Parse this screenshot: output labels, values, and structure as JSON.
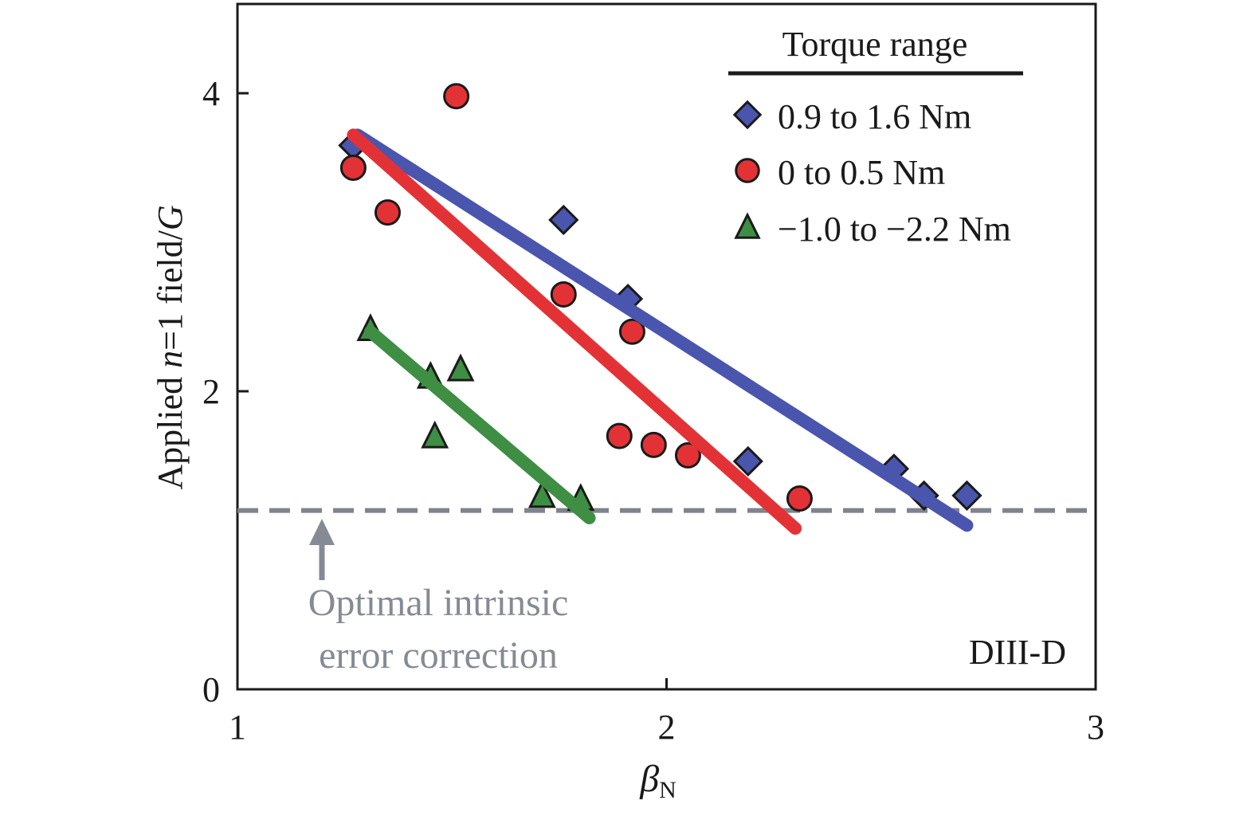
{
  "colors": {
    "blue": "#4a55ad",
    "red": "#e33236",
    "green": "#3e8e44",
    "dashed_line": "#7f848c",
    "note": "#858a94"
  },
  "chart_data": {
    "type": "scatter",
    "xlabel_symbol": "β",
    "xlabel_sub": "N",
    "ylabel_parts": [
      "Applied ",
      "n",
      "=1 field/",
      "G"
    ],
    "xlim": [
      1,
      3
    ],
    "ylim": [
      0,
      4.6
    ],
    "x_ticks": [
      1,
      2,
      3
    ],
    "x_tick_labels": [
      "1",
      "2",
      "3"
    ],
    "y_ticks": [
      0,
      2,
      4
    ],
    "y_tick_labels": [
      "0",
      "2",
      "4"
    ],
    "grid": false,
    "legend": {
      "title": "Torque range",
      "placement": "top-right"
    },
    "series": [
      {
        "name": "0.9 to 1.6 Nm",
        "marker": "diamond",
        "color": "#4a55ad",
        "points": [
          [
            1.27,
            3.65
          ],
          [
            1.76,
            3.15
          ],
          [
            1.91,
            2.62
          ],
          [
            2.19,
            1.53
          ],
          [
            2.53,
            1.48
          ],
          [
            2.6,
            1.3
          ],
          [
            2.7,
            1.3
          ]
        ],
        "fit": [
          [
            1.28,
            3.72
          ],
          [
            2.7,
            1.1
          ]
        ]
      },
      {
        "name": "0 to 0.5 Nm",
        "marker": "circle",
        "color": "#e33236",
        "points": [
          [
            1.27,
            3.5
          ],
          [
            1.35,
            3.2
          ],
          [
            1.51,
            3.98
          ],
          [
            1.76,
            2.65
          ],
          [
            1.92,
            2.4
          ],
          [
            1.89,
            1.7
          ],
          [
            1.97,
            1.64
          ],
          [
            2.05,
            1.57
          ],
          [
            2.31,
            1.28
          ]
        ],
        "fit": [
          [
            1.27,
            3.72
          ],
          [
            2.3,
            1.08
          ]
        ]
      },
      {
        "name": "−1.0 to −2.2 Nm",
        "marker": "triangle",
        "color": "#3e8e44",
        "points": [
          [
            1.31,
            2.42
          ],
          [
            1.45,
            2.1
          ],
          [
            1.52,
            2.15
          ],
          [
            1.46,
            1.7
          ],
          [
            1.71,
            1.3
          ],
          [
            1.8,
            1.28
          ]
        ],
        "fit": [
          [
            1.31,
            2.4
          ],
          [
            1.82,
            1.15
          ]
        ]
      }
    ],
    "reference_line": {
      "y": 1.2,
      "style": "dashed"
    },
    "annotation_lines": [
      "Optimal intrinsic",
      "error correction"
    ],
    "tag": "DIII-D"
  }
}
